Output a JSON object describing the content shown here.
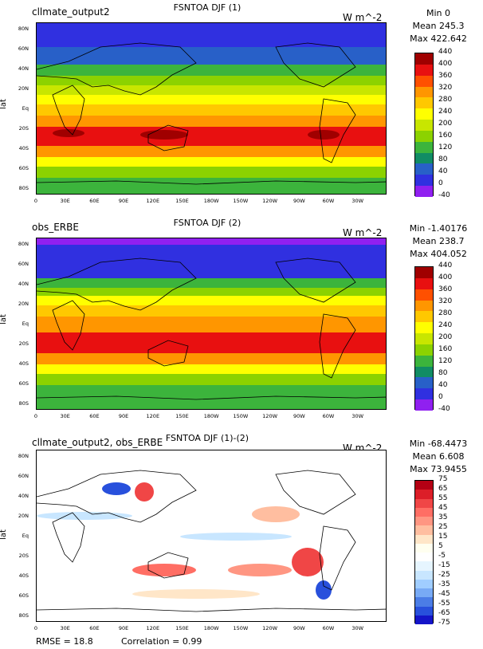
{
  "panels": [
    {
      "left_title": "cllmate_output2",
      "center_title": "FSNTOA DJF (1)",
      "units": "W m^-2",
      "stats": [
        "Min 0",
        "Mean 245.3",
        "Max 422.642"
      ],
      "colorbar_labels": [
        "440",
        "400",
        "360",
        "320",
        "280",
        "240",
        "200",
        "160",
        "120",
        "80",
        "40",
        "0",
        "-40"
      ],
      "colorbar_colors": [
        "#a00000",
        "#e81010",
        "#ff5000",
        "#ff9600",
        "#ffc800",
        "#ffff00",
        "#c8e600",
        "#8cd200",
        "#3cb43c",
        "#118c64",
        "#2860c8",
        "#3030e0",
        "#9020f0"
      ]
    },
    {
      "left_title": "obs_ERBE",
      "center_title": "FSNTOA DJF (2)",
      "units": "W m^-2",
      "stats": [
        "Min -1.40176",
        "Mean 238.7",
        "Max 404.052"
      ],
      "colorbar_labels": [
        "440",
        "400",
        "360",
        "320",
        "280",
        "240",
        "200",
        "160",
        "120",
        "80",
        "40",
        "0",
        "-40"
      ],
      "colorbar_colors": [
        "#a00000",
        "#e81010",
        "#ff5000",
        "#ff9600",
        "#ffc800",
        "#ffff00",
        "#c8e600",
        "#8cd200",
        "#3cb43c",
        "#118c64",
        "#2860c8",
        "#3030e0",
        "#9020f0"
      ]
    },
    {
      "left_title": "cllmate_output2, obs_ERBE",
      "center_title": "FSNTOA DJF (1)-(2)",
      "units": "W m^-2",
      "stats": [
        "Min -68.4473",
        "Mean 6.608",
        "Max 73.9455"
      ],
      "colorbar_labels": [
        "75",
        "65",
        "55",
        "45",
        "35",
        "25",
        "15",
        "5",
        "-5",
        "-15",
        "-25",
        "-35",
        "-45",
        "-55",
        "-65",
        "-75"
      ],
      "colorbar_colors": [
        "#b40014",
        "#dc1e28",
        "#f04646",
        "#ff6e64",
        "#ff9682",
        "#ffbea0",
        "#ffe6c8",
        "#fffff0",
        "#ffffff",
        "#e6f5ff",
        "#c8e6ff",
        "#a0cdff",
        "#78aaf5",
        "#4b7de6",
        "#2850dc",
        "#1414c8"
      ],
      "footer_rmse": "RMSE = 18.8",
      "footer_corr": "Correlation = 0.99"
    }
  ],
  "axes": {
    "lat_label": "lat",
    "y_ticks": [
      "80N",
      "60N",
      "40N",
      "20N",
      "Eq",
      "20S",
      "40S",
      "60S",
      "80S"
    ],
    "x_ticks": [
      "0",
      "30E",
      "60E",
      "90E",
      "120E",
      "150E",
      "180W",
      "150W",
      "120W",
      "90W",
      "60W",
      "30W"
    ]
  }
}
